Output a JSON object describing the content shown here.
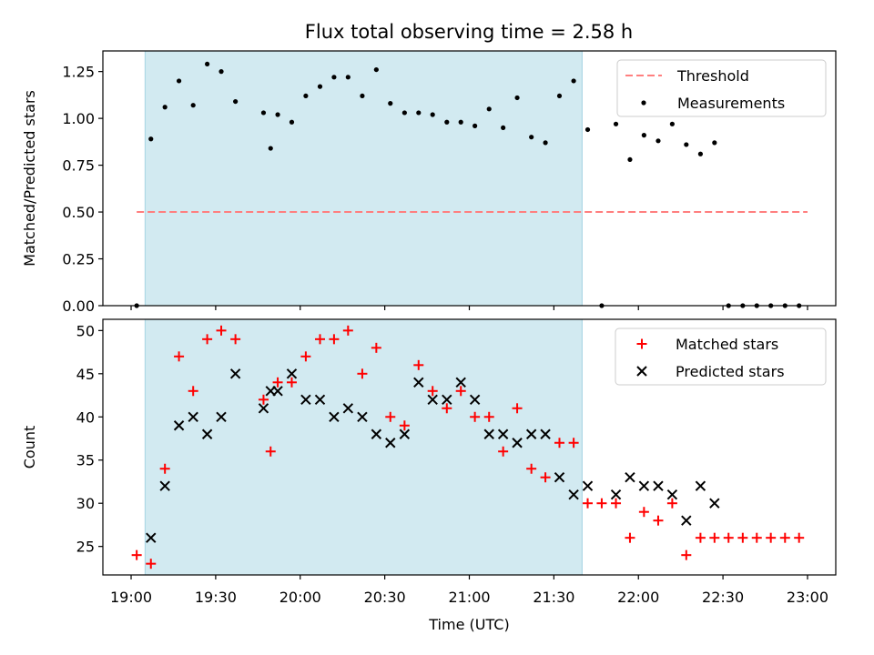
{
  "title": "Flux total observing time = 2.58 h",
  "colors": {
    "threshold": "#ff7f7f",
    "measurement": "#000000",
    "matched": "#ff0000",
    "predicted": "#000000",
    "span": "#add8e6"
  },
  "chart_data": [
    {
      "type": "scatter",
      "ylabel": "Matched/Predicted stars",
      "xlabel": "",
      "xlim": [
        18.833,
        23.167
      ],
      "ylim": [
        0,
        1.36
      ],
      "yticks": [
        0.0,
        0.25,
        0.5,
        0.75,
        1.0,
        1.25
      ],
      "ytick_labels": [
        "0.00",
        "0.25",
        "0.50",
        "0.75",
        "1.00",
        "1.25"
      ],
      "shaded_span": [
        19.083,
        21.667
      ],
      "legend": [
        "Threshold",
        "Measurements"
      ],
      "legend_position": "top-right",
      "threshold": {
        "name": "Threshold",
        "y": 0.5,
        "x": [
          19.033,
          23.0
        ]
      },
      "series": [
        {
          "name": "Measurements",
          "x": [
            19.033,
            19.117,
            19.2,
            19.283,
            19.367,
            19.45,
            19.533,
            19.617,
            19.783,
            19.825,
            19.867,
            19.95,
            20.033,
            20.117,
            20.2,
            20.283,
            20.367,
            20.45,
            20.533,
            20.617,
            20.7,
            20.783,
            20.867,
            20.95,
            21.033,
            21.117,
            21.2,
            21.283,
            21.367,
            21.45,
            21.533,
            21.617,
            21.7,
            21.783,
            21.867,
            21.95,
            22.033,
            22.117,
            22.2,
            22.283,
            22.367,
            22.45,
            22.533,
            22.617,
            22.7,
            22.783,
            22.867,
            22.95
          ],
          "y": [
            0.0,
            0.89,
            1.06,
            1.2,
            1.07,
            1.29,
            1.25,
            1.09,
            1.03,
            0.84,
            1.02,
            0.98,
            1.12,
            1.17,
            1.22,
            1.22,
            1.12,
            1.26,
            1.08,
            1.03,
            1.03,
            1.02,
            0.98,
            0.98,
            0.96,
            1.05,
            0.95,
            1.11,
            0.9,
            0.87,
            1.12,
            1.2,
            0.94,
            0.0,
            0.97,
            0.78,
            0.91,
            0.88,
            0.97,
            0.86,
            0.81,
            0.87,
            0.0,
            0.0,
            0.0,
            0.0,
            0.0,
            0.0
          ]
        }
      ]
    },
    {
      "type": "scatter",
      "ylabel": "Count",
      "xlabel": "Time (UTC)",
      "xlim": [
        18.833,
        23.167
      ],
      "ylim": [
        21.7,
        51.3
      ],
      "yticks": [
        25,
        30,
        35,
        40,
        45,
        50
      ],
      "ytick_labels": [
        "25",
        "30",
        "35",
        "40",
        "45",
        "50"
      ],
      "xticks": [
        19,
        19.5,
        20,
        20.5,
        21,
        21.5,
        22,
        22.5,
        23
      ],
      "xtick_labels": [
        "19:00",
        "19:30",
        "20:00",
        "20:30",
        "21:00",
        "21:30",
        "22:00",
        "22:30",
        "23:00"
      ],
      "shaded_span": [
        19.083,
        21.667
      ],
      "legend": [
        "Matched stars",
        "Predicted stars"
      ],
      "legend_position": "top-right",
      "series": [
        {
          "name": "Matched stars",
          "marker": "+",
          "x": [
            19.033,
            19.117,
            19.2,
            19.283,
            19.367,
            19.45,
            19.533,
            19.617,
            19.783,
            19.825,
            19.867,
            19.95,
            20.033,
            20.117,
            20.2,
            20.283,
            20.367,
            20.45,
            20.533,
            20.617,
            20.7,
            20.783,
            20.867,
            20.95,
            21.033,
            21.117,
            21.2,
            21.283,
            21.367,
            21.45,
            21.533,
            21.617,
            21.7,
            21.783,
            21.867,
            21.95,
            22.033,
            22.117,
            22.2,
            22.283,
            22.367,
            22.45,
            22.533,
            22.617,
            22.7,
            22.783,
            22.867,
            22.95
          ],
          "y": [
            24,
            23,
            34,
            47,
            43,
            49,
            50,
            49,
            42,
            36,
            44,
            44,
            47,
            49,
            49,
            50,
            45,
            48,
            40,
            39,
            46,
            43,
            41,
            43,
            40,
            40,
            36,
            41,
            34,
            33,
            37,
            37,
            30,
            30,
            30,
            26,
            29,
            28,
            30,
            24,
            26,
            26,
            26,
            26,
            26,
            26,
            26,
            26
          ]
        },
        {
          "name": "Predicted stars",
          "marker": "x",
          "x": [
            19.117,
            19.2,
            19.283,
            19.367,
            19.45,
            19.533,
            19.617,
            19.783,
            19.825,
            19.867,
            19.95,
            20.033,
            20.117,
            20.2,
            20.283,
            20.367,
            20.45,
            20.533,
            20.617,
            20.7,
            20.783,
            20.867,
            20.95,
            21.033,
            21.117,
            21.2,
            21.283,
            21.367,
            21.45,
            21.533,
            21.617,
            21.7,
            21.867,
            21.95,
            22.033,
            22.117,
            22.2,
            22.283,
            22.367,
            22.45
          ],
          "y": [
            26,
            32,
            39,
            40,
            38,
            40,
            45,
            41,
            43,
            43,
            45,
            42,
            42,
            40,
            41,
            40,
            38,
            37,
            38,
            44,
            42,
            42,
            44,
            42,
            38,
            38,
            37,
            38,
            38,
            33,
            31,
            32,
            31,
            33,
            32,
            32,
            31,
            28,
            32,
            30
          ]
        }
      ]
    }
  ]
}
